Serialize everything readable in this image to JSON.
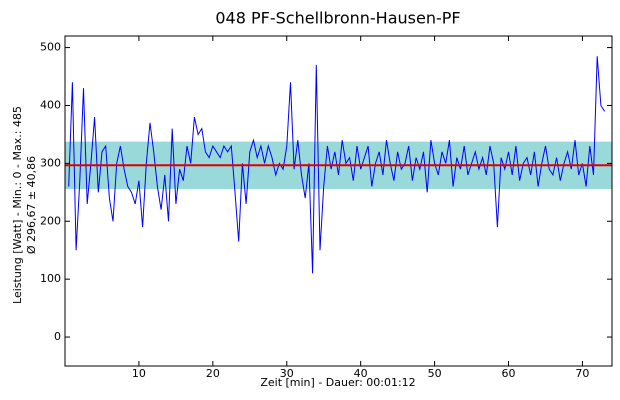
{
  "chart_data": {
    "type": "line",
    "title": "048 PF-Schellbronn-Hausen-PF",
    "y_label": "Leistung [Watt] - Min.: 0 - Max.: 485",
    "y_label_stats": "Ø 296,67 ± 40,86",
    "x_label": "Zeit [min] - Dauer: 00:01:12",
    "mean": 296.67,
    "std": 40.86,
    "mean_color": "#e00000",
    "band_color": "#7fcfcf",
    "xlim": [
      0,
      74
    ],
    "ylim": [
      -50,
      520
    ],
    "xticks": [
      10,
      20,
      30,
      40,
      50,
      60,
      70
    ],
    "yticks": [
      0,
      100,
      200,
      300,
      400,
      500
    ],
    "series": [
      {
        "name": "Leistung",
        "color": "#0000ff",
        "x": [
          0.5,
          1,
          1.5,
          2,
          2.5,
          3,
          3.5,
          4,
          4.5,
          5,
          5.5,
          6,
          6.5,
          7,
          7.5,
          8,
          8.5,
          9,
          9.5,
          10,
          10.5,
          11,
          11.5,
          12,
          12.5,
          13,
          13.5,
          14,
          14.5,
          15,
          15.5,
          16,
          16.5,
          17,
          17.5,
          18,
          18.5,
          19,
          19.5,
          20,
          20.5,
          21,
          21.5,
          22,
          22.5,
          23,
          23.5,
          24,
          24.5,
          25,
          25.5,
          26,
          26.5,
          27,
          27.5,
          28,
          28.5,
          29,
          29.5,
          30,
          30.5,
          31,
          31.5,
          32,
          32.5,
          33,
          33.5,
          34,
          34.5,
          35,
          35.5,
          36,
          36.5,
          37,
          37.5,
          38,
          38.5,
          39,
          39.5,
          40,
          40.5,
          41,
          41.5,
          42,
          42.5,
          43,
          43.5,
          44,
          44.5,
          45,
          45.5,
          46,
          46.5,
          47,
          47.5,
          48,
          48.5,
          49,
          49.5,
          50,
          50.5,
          51,
          51.5,
          52,
          52.5,
          53,
          53.5,
          54,
          54.5,
          55,
          55.5,
          56,
          56.5,
          57,
          57.5,
          58,
          58.5,
          59,
          59.5,
          60,
          60.5,
          61,
          61.5,
          62,
          62.5,
          63,
          63.5,
          64,
          64.5,
          65,
          65.5,
          66,
          66.5,
          67,
          67.5,
          68,
          68.5,
          69,
          69.5,
          70,
          70.5,
          71,
          71.5,
          72,
          72.5,
          73
        ],
        "values": [
          260,
          440,
          150,
          270,
          430,
          230,
          300,
          380,
          250,
          320,
          330,
          240,
          200,
          300,
          330,
          290,
          260,
          250,
          230,
          270,
          190,
          300,
          370,
          320,
          260,
          220,
          280,
          200,
          360,
          230,
          290,
          270,
          330,
          300,
          380,
          350,
          360,
          320,
          310,
          330,
          320,
          310,
          330,
          320,
          330,
          250,
          165,
          300,
          230,
          320,
          340,
          310,
          330,
          300,
          330,
          310,
          280,
          300,
          290,
          330,
          440,
          290,
          340,
          280,
          240,
          300,
          110,
          470,
          150,
          260,
          330,
          290,
          320,
          280,
          340,
          300,
          310,
          270,
          330,
          290,
          310,
          330,
          260,
          300,
          320,
          280,
          340,
          300,
          270,
          320,
          290,
          300,
          330,
          270,
          310,
          290,
          320,
          250,
          340,
          300,
          280,
          320,
          300,
          340,
          260,
          310,
          290,
          330,
          280,
          300,
          320,
          290,
          310,
          280,
          330,
          300,
          190,
          310,
          290,
          320,
          280,
          330,
          270,
          300,
          310,
          280,
          320,
          260,
          300,
          330,
          290,
          280,
          310,
          270,
          300,
          320,
          290,
          340,
          280,
          300,
          260,
          330,
          280,
          485,
          400,
          390
        ]
      }
    ]
  }
}
